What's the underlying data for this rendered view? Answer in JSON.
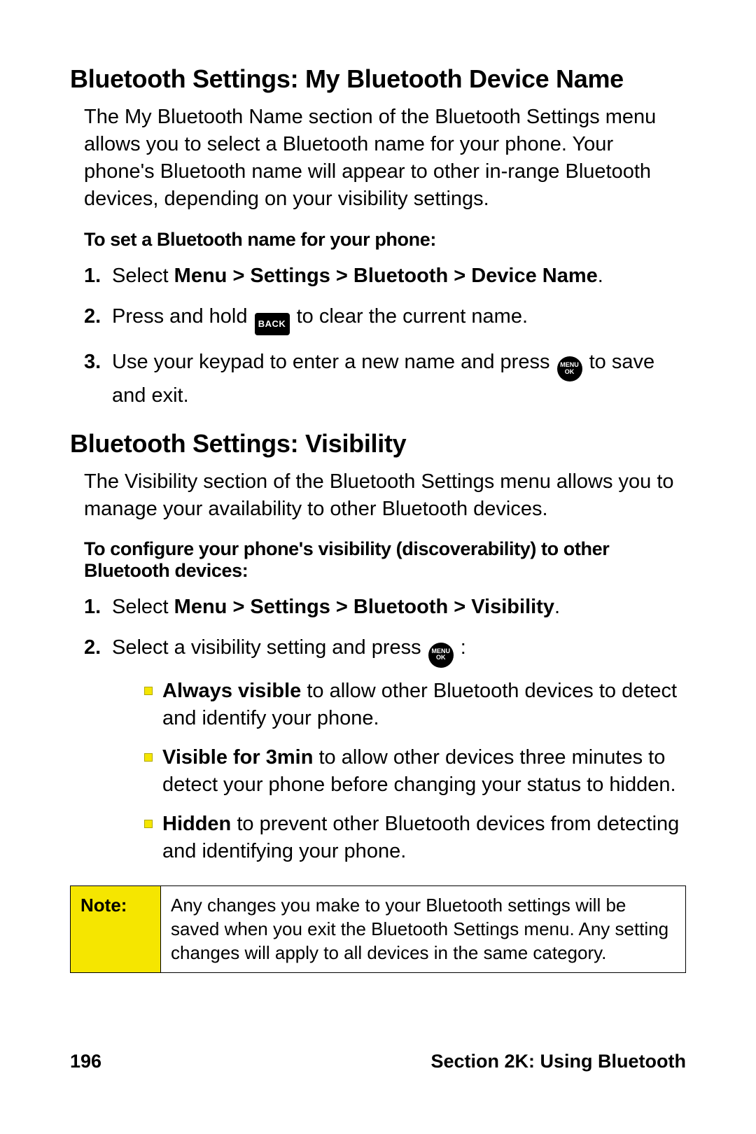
{
  "colors": {
    "note_bg": "#f5e600",
    "bullet_fill": "#f5e600",
    "bullet_border": "#b0a800",
    "text": "#000000",
    "page_bg": "#ffffff"
  },
  "icons": {
    "back_label": "BACK",
    "menuok_line1": "MENU",
    "menuok_line2": "OK"
  },
  "section1": {
    "heading": "Bluetooth Settings: My Bluetooth Device Name",
    "intro": "The My Bluetooth Name section of the Bluetooth Settings menu allows you to select a Bluetooth name for your phone. Your phone's Bluetooth name will appear to other in-range Bluetooth devices, depending on your visibility settings.",
    "lead_in": "To set a Bluetooth name for your phone:",
    "step1_a": "Select ",
    "step1_b": "Menu > Settings > Bluetooth > Device Name",
    "step1_c": ".",
    "step2_a": "Press and hold ",
    "step2_b": " to clear the current name.",
    "step3_a": "Use your keypad to enter a new name and press ",
    "step3_b": " to save and exit."
  },
  "section2": {
    "heading": "Bluetooth Settings: Visibility",
    "intro": "The Visibility section of the Bluetooth Settings menu allows you to manage your availability to other Bluetooth devices.",
    "lead_in": "To configure your phone's visibility (discoverability) to other Bluetooth devices:",
    "step1_a": "Select ",
    "step1_b": "Menu > Settings > Bluetooth > Visibility",
    "step1_c": ".",
    "step2_a": "Select a visibility setting and press ",
    "step2_b": " :",
    "bullets": {
      "b1_bold": "Always visible",
      "b1_rest": " to allow other Bluetooth devices to detect and identify your phone.",
      "b2_bold": "Visible for 3min",
      "b2_rest": " to allow other devices three minutes to detect your phone before changing your status to hidden.",
      "b3_bold": "Hidden",
      "b3_rest": " to prevent other Bluetooth devices from detecting and identifying your phone."
    }
  },
  "note": {
    "label": "Note:",
    "text": "Any changes you make to your Bluetooth settings will be saved when you exit the Bluetooth Settings menu. Any setting changes will apply to all devices in the same category."
  },
  "footer": {
    "page_number": "196",
    "section_label": "Section 2K: Using Bluetooth"
  }
}
